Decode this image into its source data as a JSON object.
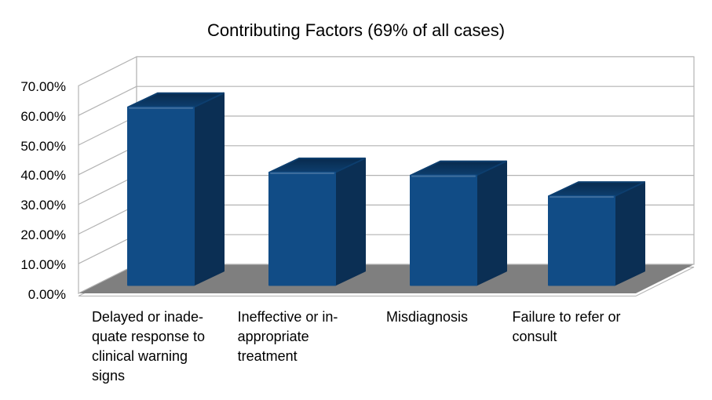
{
  "title": "Contributing Factors (69% of all cases)",
  "chart_data": {
    "type": "bar",
    "style": "3d",
    "title": "Contributing Factors (69% of all cases)",
    "categories": [
      "Delayed or inadequate response to clinical warning signs",
      "Ineffective or inappropriate treatment",
      "Misdiagnosis",
      "Failure to refer or consult"
    ],
    "category_display_lines": [
      [
        "Delayed or inade-",
        "quate response to",
        "clinical warning",
        "signs"
      ],
      [
        "Ineffective or in-",
        "appropriate",
        "treatment"
      ],
      [
        "Misdiagnosis"
      ],
      [
        "Failure to refer or",
        "consult"
      ]
    ],
    "values": [
      60,
      38,
      37,
      30
    ],
    "value_unit": "percent",
    "ylim": [
      0,
      70
    ],
    "y_tick_step": 10,
    "y_tick_labels": [
      "0.00%",
      "10.00%",
      "20.00%",
      "30.00%",
      "40.00%",
      "50.00%",
      "60.00%",
      "70.00%"
    ],
    "grid": true,
    "legend": "none",
    "colors": {
      "bar_front": "#114C86",
      "bar_top": "#0D3E6E",
      "bar_top_back": "#082A4D",
      "bar_side": "#0B2F54",
      "floor": "#7F7F7F",
      "slab_face": "#FDFDFD",
      "grid_line": "#B3B3B3",
      "background": "#FFFFFF",
      "text": "#000000"
    }
  }
}
